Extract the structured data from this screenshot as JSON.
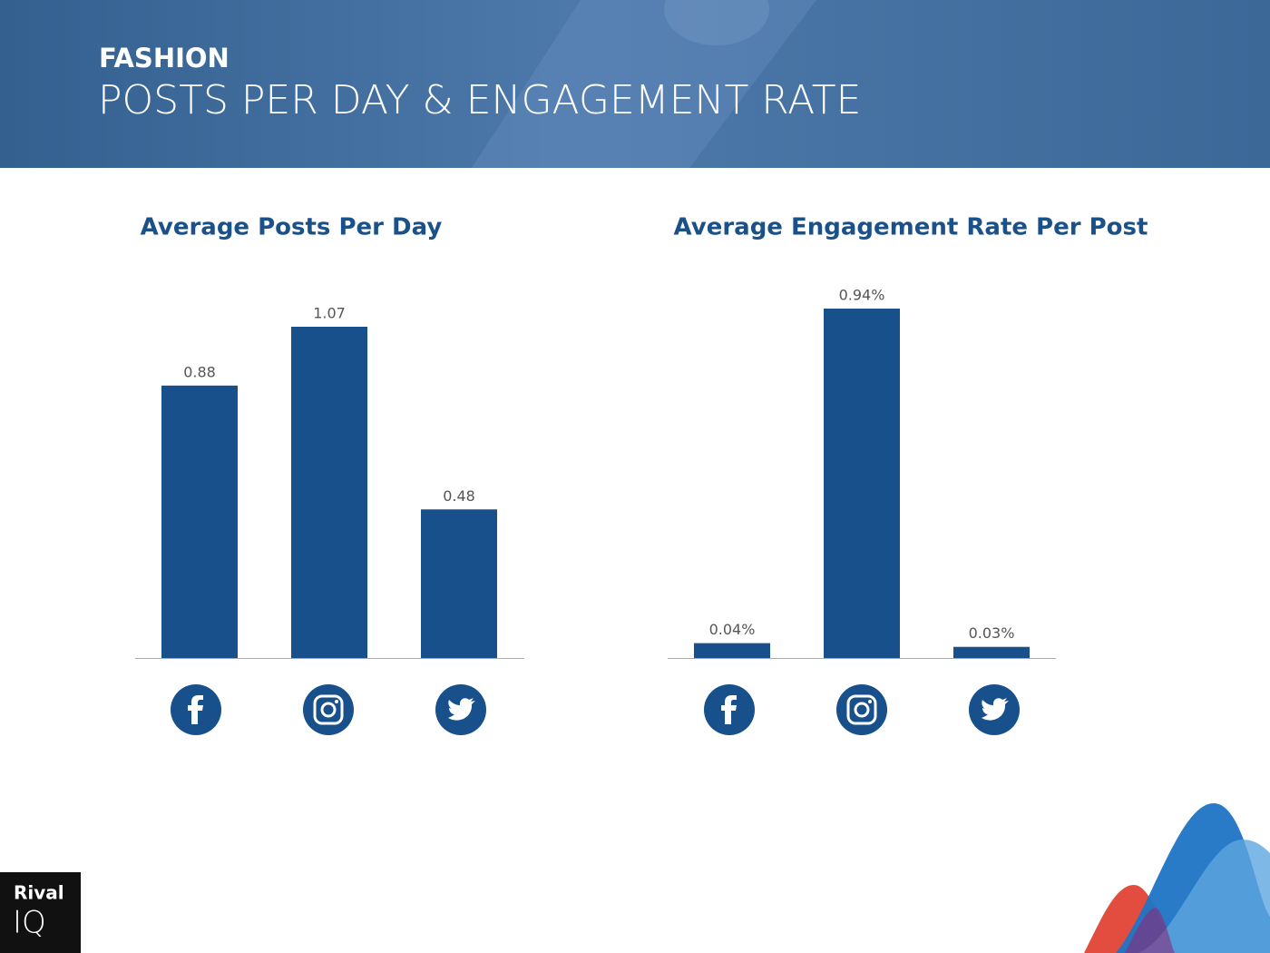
{
  "header": {
    "kicker": "FASHION",
    "title": "POSTS PER DAY & ENGAGEMENT RATE"
  },
  "chart_data": [
    {
      "type": "bar",
      "title": "Average Posts Per Day",
      "categories": [
        null,
        null,
        null
      ],
      "values": [
        0.88,
        1.07,
        0.48
      ],
      "color": "#17508a"
    },
    {
      "type": "bar",
      "title": "Average Engagement Rate Per Post",
      "categories": [
        null,
        null,
        null
      ],
      "values": [
        0.04,
        0.94,
        0.03
      ],
      "value_labels": [
        "0.04%",
        "0.94%",
        "0.03%"
      ],
      "color": "#17508a"
    }
  ],
  "logo": {
    "line1": "Rival",
    "line2": "IQ"
  }
}
